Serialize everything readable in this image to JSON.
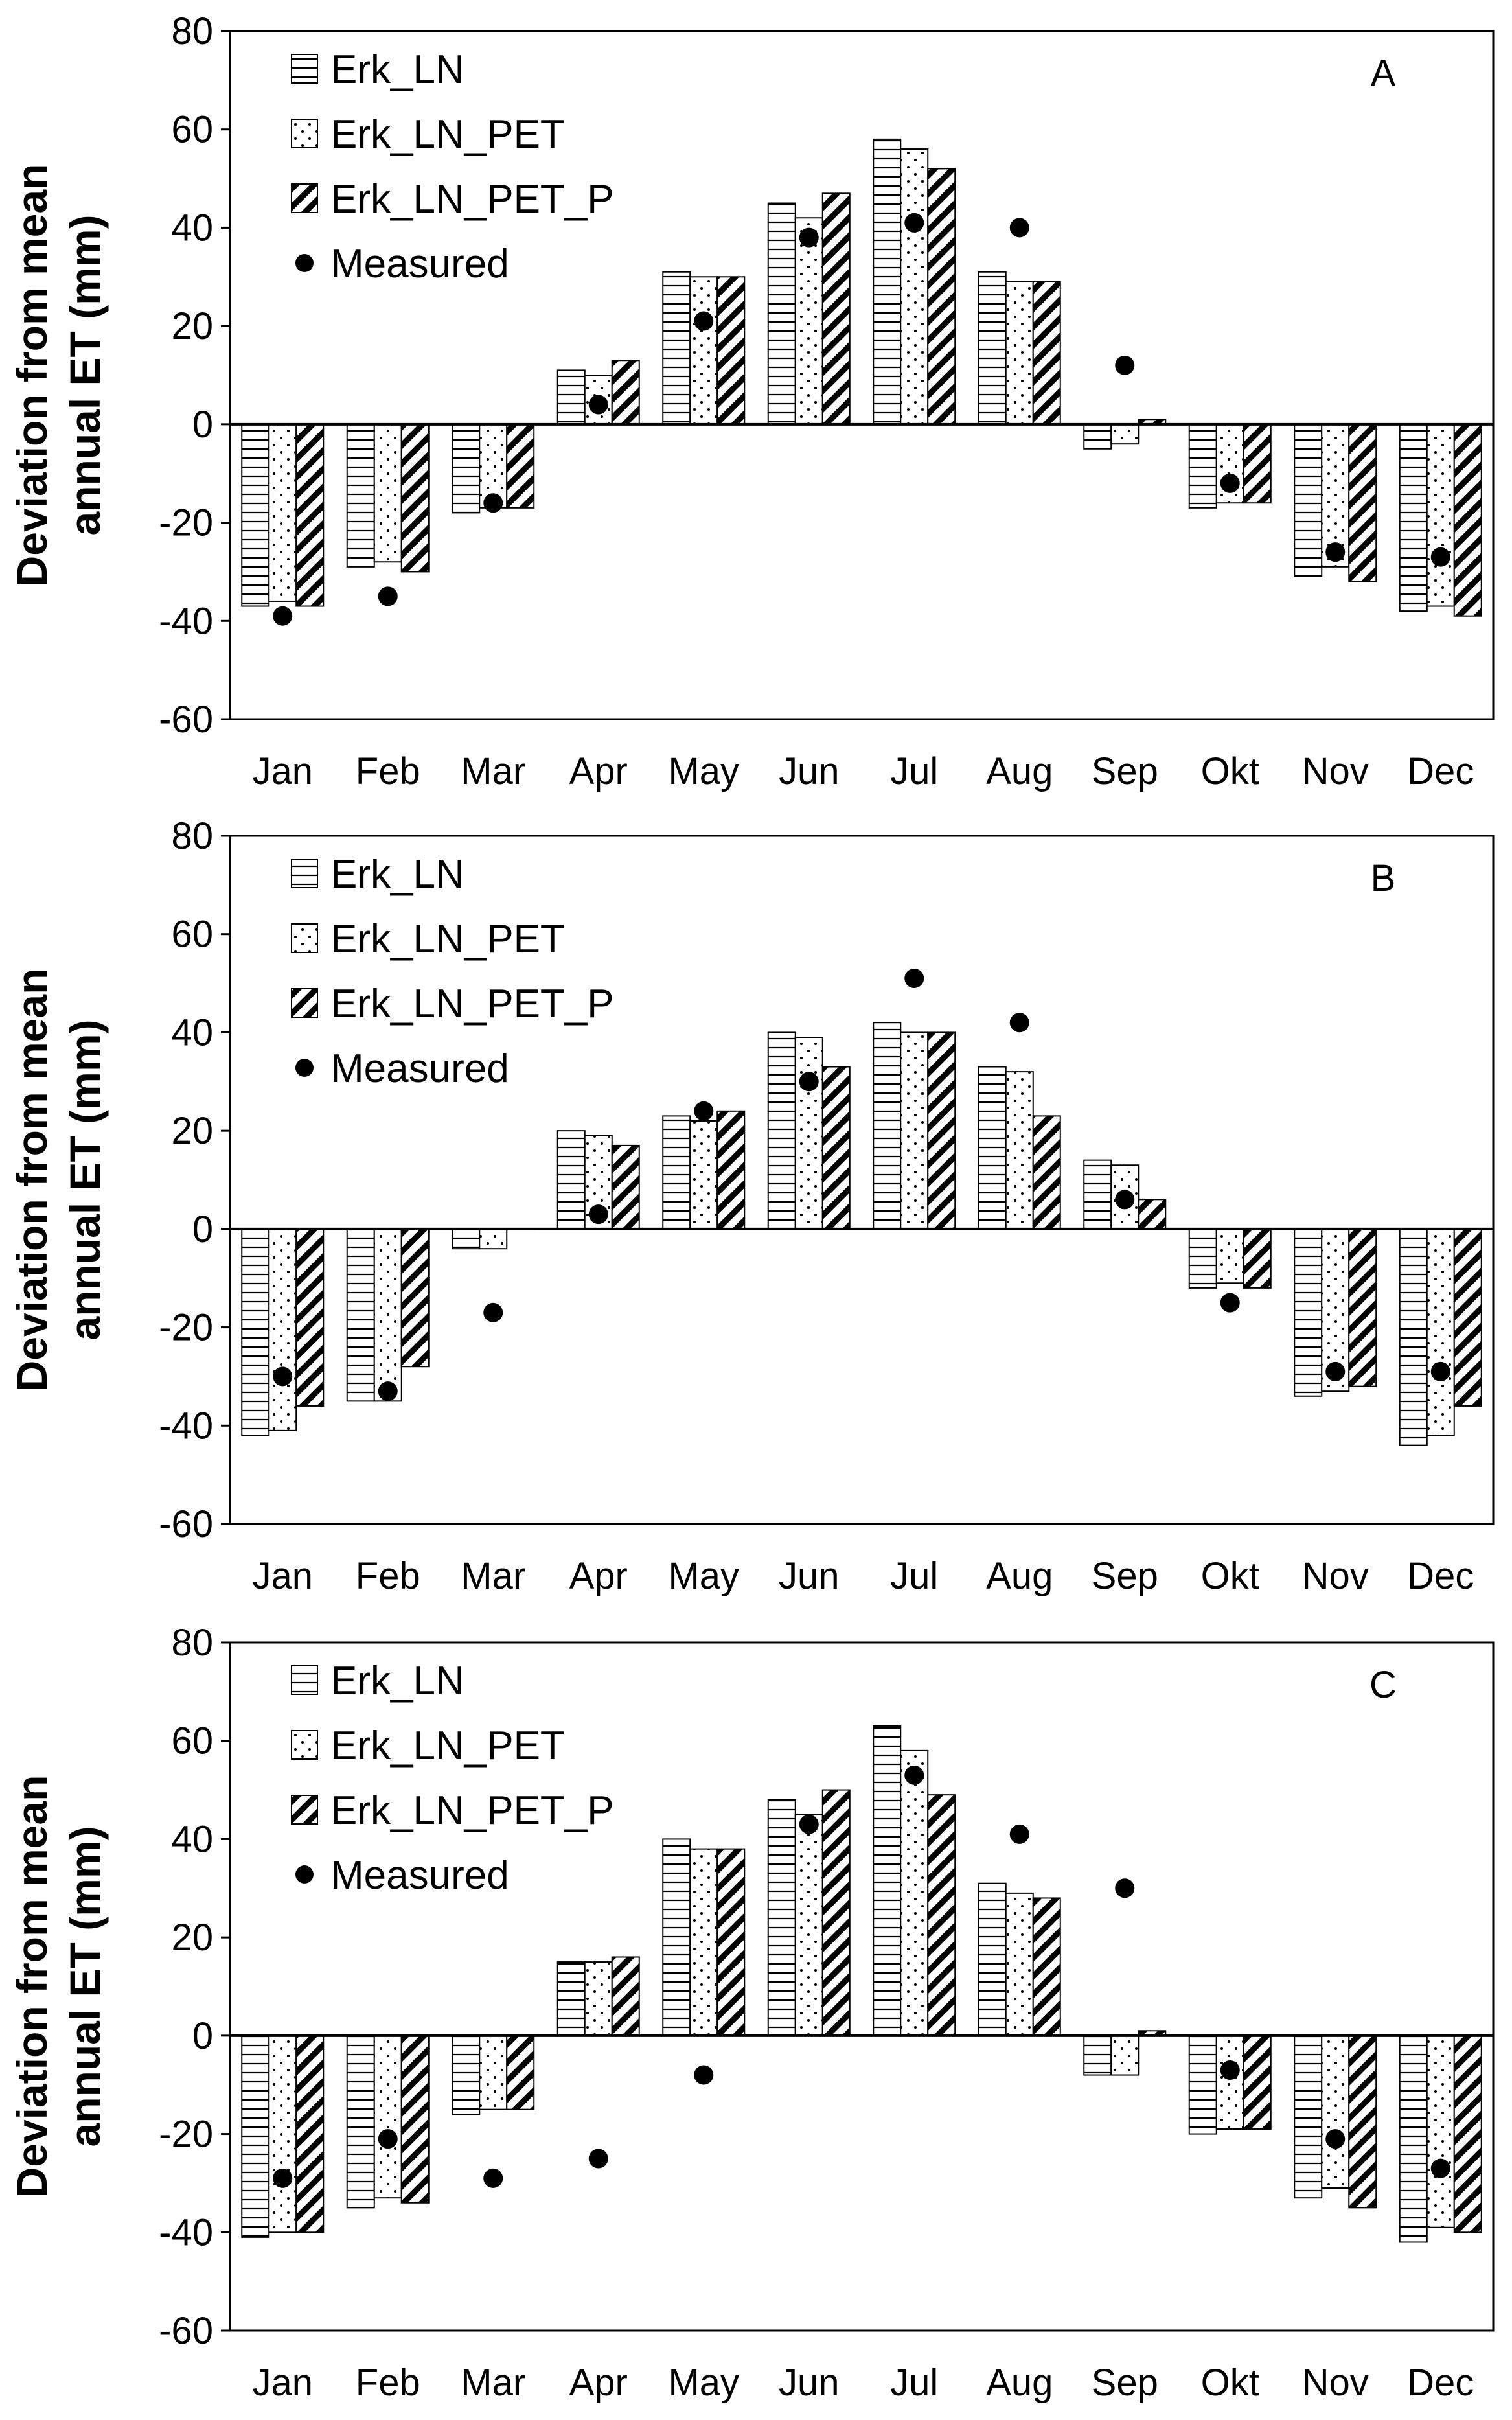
{
  "chart_data": [
    {
      "type": "bar",
      "panel_label": "A",
      "ylabel_lines": [
        "Deviation from mean",
        "annual ET (mm)"
      ],
      "ylim": [
        -60,
        80
      ],
      "yticks": [
        -60,
        -40,
        -20,
        0,
        20,
        40,
        60,
        80
      ],
      "categories": [
        "Jan",
        "Feb",
        "Mar",
        "Apr",
        "May",
        "Jun",
        "Jul",
        "Aug",
        "Sep",
        "Okt",
        "Nov",
        "Dec"
      ],
      "legend_placement": "top-left",
      "series": [
        {
          "name": "Erk_LN",
          "kind": "bar",
          "pattern": "horizontal-lines",
          "values": [
            -37,
            -29,
            -18,
            11,
            31,
            45,
            58,
            31,
            -5,
            -17,
            -31,
            -38
          ]
        },
        {
          "name": "Erk_LN_PET",
          "kind": "bar",
          "pattern": "dots",
          "values": [
            -36,
            -28,
            -17,
            10,
            30,
            42,
            56,
            29,
            -4,
            -16,
            -29,
            -37
          ]
        },
        {
          "name": "Erk_LN_PET_P",
          "kind": "bar",
          "pattern": "diagonal-stripes",
          "values": [
            -37,
            -30,
            -17,
            13,
            30,
            47,
            52,
            29,
            1,
            -16,
            -32,
            -39
          ]
        },
        {
          "name": "Measured",
          "kind": "point",
          "values": [
            -39,
            -35,
            -16,
            4,
            21,
            38,
            41,
            40,
            12,
            -12,
            -26,
            -27
          ]
        }
      ]
    },
    {
      "type": "bar",
      "panel_label": "B",
      "ylabel_lines": [
        "Deviation from mean",
        "annual ET (mm)"
      ],
      "ylim": [
        -60,
        80
      ],
      "yticks": [
        -60,
        -40,
        -20,
        0,
        20,
        40,
        60,
        80
      ],
      "categories": [
        "Jan",
        "Feb",
        "Mar",
        "Apr",
        "May",
        "Jun",
        "Jul",
        "Aug",
        "Sep",
        "Okt",
        "Nov",
        "Dec"
      ],
      "legend_placement": "top-left",
      "series": [
        {
          "name": "Erk_LN",
          "kind": "bar",
          "pattern": "horizontal-lines",
          "values": [
            -42,
            -35,
            -4,
            20,
            23,
            40,
            42,
            33,
            14,
            -12,
            -34,
            -44
          ]
        },
        {
          "name": "Erk_LN_PET",
          "kind": "bar",
          "pattern": "dots",
          "values": [
            -41,
            -35,
            -4,
            19,
            22,
            39,
            40,
            32,
            13,
            -11,
            -33,
            -42
          ]
        },
        {
          "name": "Erk_LN_PET_P",
          "kind": "bar",
          "pattern": "diagonal-stripes",
          "values": [
            -36,
            -28,
            0,
            17,
            24,
            33,
            40,
            23,
            6,
            -12,
            -32,
            -36
          ]
        },
        {
          "name": "Measured",
          "kind": "point",
          "values": [
            -30,
            -33,
            -17,
            3,
            24,
            30,
            51,
            42,
            6,
            -15,
            -29,
            -29
          ]
        }
      ]
    },
    {
      "type": "bar",
      "panel_label": "C",
      "ylabel_lines": [
        "Deviation from mean",
        "annual ET (mm)"
      ],
      "ylim": [
        -60,
        80
      ],
      "yticks": [
        -60,
        -40,
        -20,
        0,
        20,
        40,
        60,
        80
      ],
      "categories": [
        "Jan",
        "Feb",
        "Mar",
        "Apr",
        "May",
        "Jun",
        "Jul",
        "Aug",
        "Sep",
        "Okt",
        "Nov",
        "Dec"
      ],
      "legend_placement": "top-left",
      "series": [
        {
          "name": "Erk_LN",
          "kind": "bar",
          "pattern": "horizontal-lines",
          "values": [
            -41,
            -35,
            -16,
            15,
            40,
            48,
            63,
            31,
            -8,
            -20,
            -33,
            -42
          ]
        },
        {
          "name": "Erk_LN_PET",
          "kind": "bar",
          "pattern": "dots",
          "values": [
            -40,
            -33,
            -15,
            15,
            38,
            45,
            58,
            29,
            -8,
            -19,
            -31,
            -39
          ]
        },
        {
          "name": "Erk_LN_PET_P",
          "kind": "bar",
          "pattern": "diagonal-stripes",
          "values": [
            -40,
            -34,
            -15,
            16,
            38,
            50,
            49,
            28,
            1,
            -19,
            -35,
            -40
          ]
        },
        {
          "name": "Measured",
          "kind": "point",
          "values": [
            -29,
            -21,
            -29,
            -25,
            -8,
            43,
            53,
            41,
            30,
            -7,
            -21,
            -27
          ]
        }
      ]
    }
  ]
}
